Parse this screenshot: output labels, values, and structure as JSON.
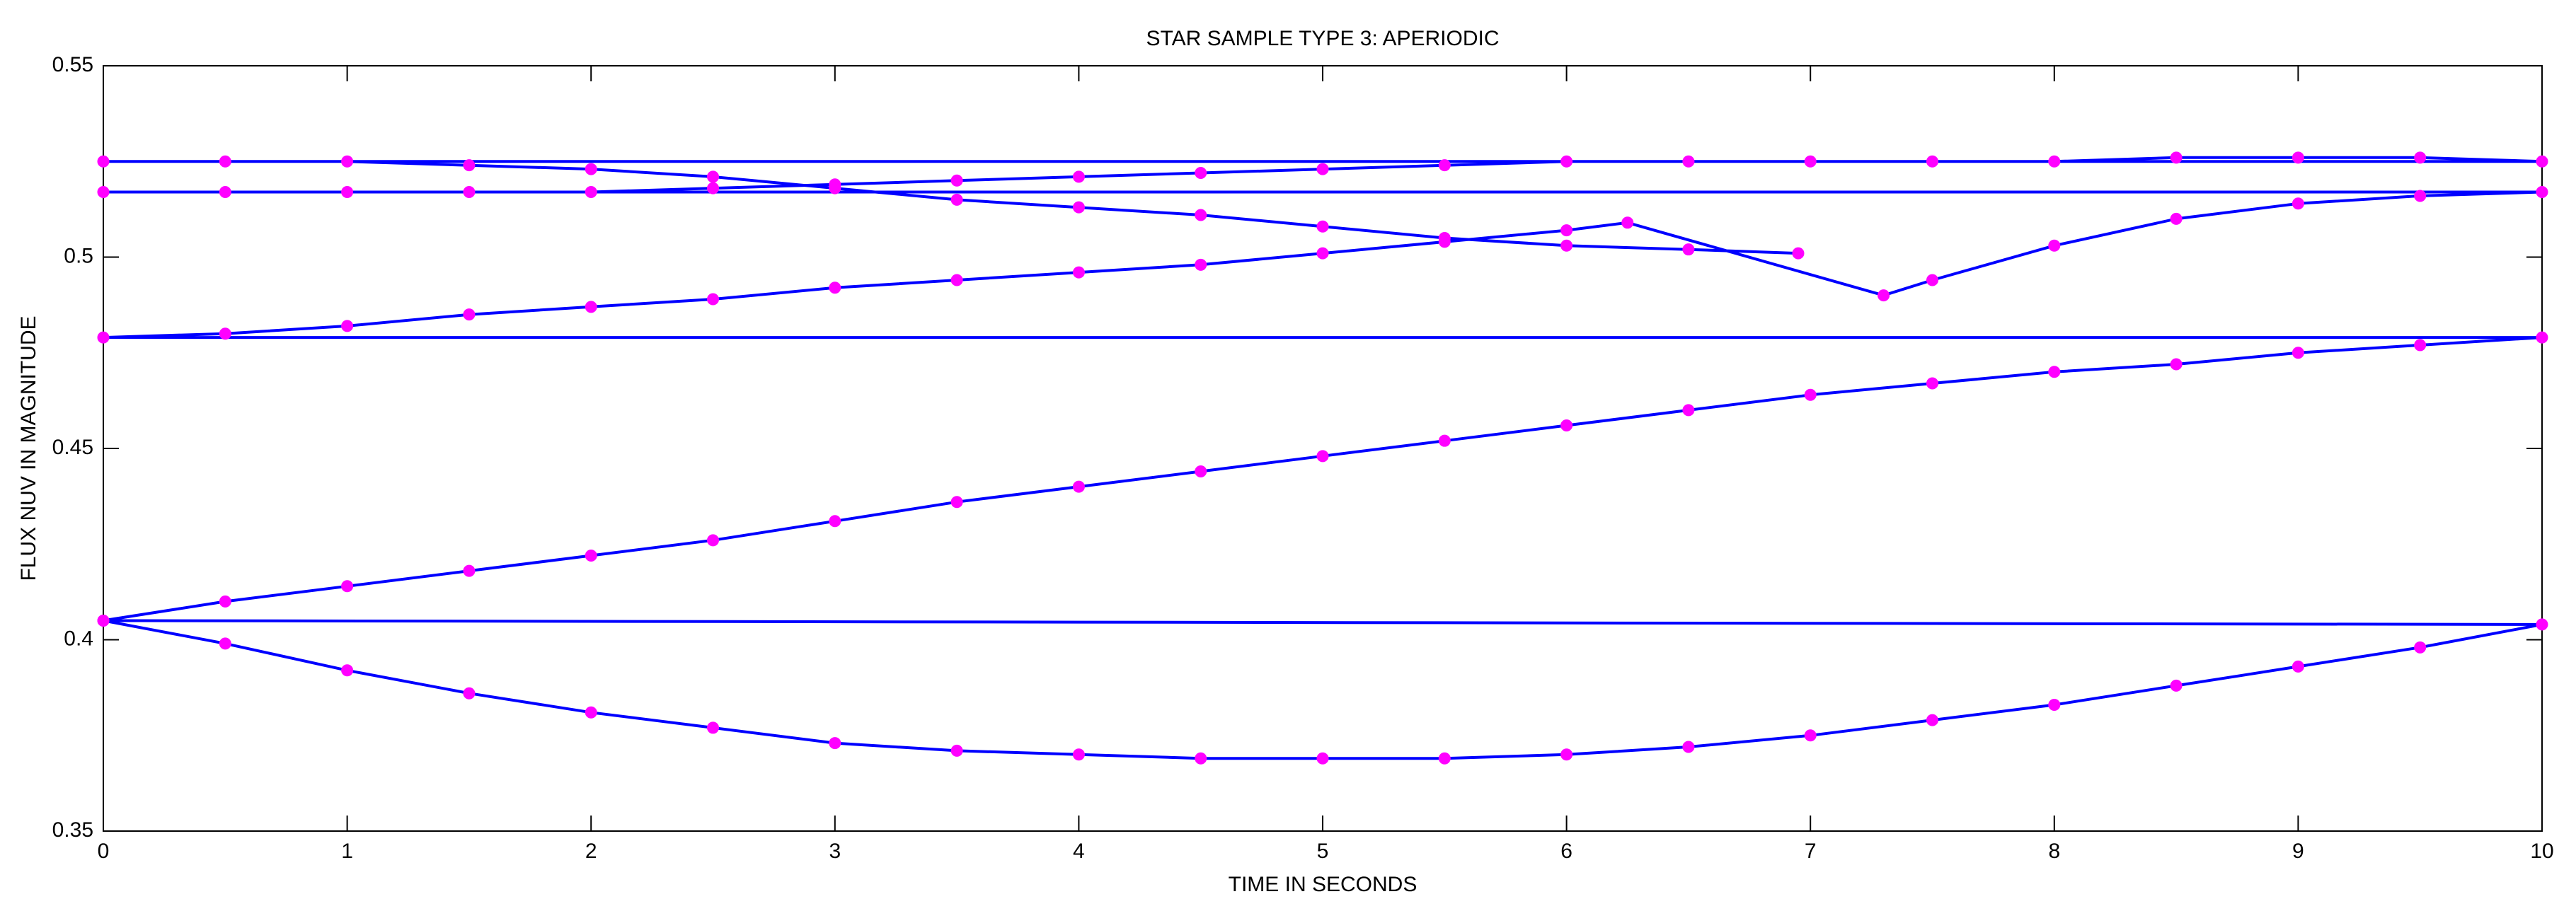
{
  "chart_data": {
    "type": "line",
    "title": "STAR SAMPLE TYPE 3: APERIODIC",
    "xlabel": "TIME IN SECONDS",
    "ylabel": "FLUX NUV IN MAGNITUDE",
    "xlim": [
      0,
      10
    ],
    "ylim": [
      0.35,
      0.55
    ],
    "xticks": [
      0,
      1,
      2,
      3,
      4,
      5,
      6,
      7,
      8,
      9,
      10
    ],
    "yticks": [
      0.35,
      0.4,
      0.45,
      0.5,
      0.55
    ],
    "grid": false,
    "color": "#0000ff",
    "marker_color": "#ff00ff",
    "x": [
      0,
      0.5,
      1,
      1.5,
      2,
      2.5,
      3,
      3.5,
      4,
      4.5,
      5,
      5.5,
      6,
      6.5,
      7,
      7.5,
      8,
      8.5,
      9,
      9.5,
      10,
      0,
      0.5,
      1,
      1.5,
      2,
      2.5,
      3,
      3.5,
      4,
      4.5,
      5,
      5.5,
      6,
      6.5,
      7,
      7.5,
      8,
      8.5,
      9,
      9.5,
      10,
      0,
      0.5,
      1,
      1.5,
      2,
      2.5,
      3,
      3.5,
      4,
      4.5,
      5,
      5.5,
      6,
      6.25,
      7.3,
      7.5,
      8,
      8.5,
      9,
      9.5,
      10,
      0,
      0.5,
      1,
      1.5,
      2,
      2.5,
      3,
      3.5,
      4,
      4.5,
      5,
      5.5,
      6,
      6.5,
      7,
      7.5,
      8,
      8.5,
      9,
      9.5,
      10,
      0,
      0.5,
      1,
      1.5,
      2,
      2.5,
      3,
      3.5,
      4,
      4.5,
      5,
      5.5,
      6,
      6.5,
      6.95
    ],
    "values": [
      0.405,
      0.399,
      0.392,
      0.386,
      0.381,
      0.377,
      0.373,
      0.371,
      0.37,
      0.369,
      0.369,
      0.369,
      0.37,
      0.372,
      0.375,
      0.379,
      0.383,
      0.388,
      0.393,
      0.398,
      0.404,
      0.405,
      0.41,
      0.414,
      0.418,
      0.422,
      0.426,
      0.431,
      0.436,
      0.44,
      0.444,
      0.448,
      0.452,
      0.456,
      0.46,
      0.464,
      0.467,
      0.47,
      0.472,
      0.475,
      0.477,
      0.479,
      0.479,
      0.48,
      0.482,
      0.485,
      0.487,
      0.489,
      0.492,
      0.494,
      0.496,
      0.498,
      0.501,
      0.504,
      0.507,
      0.509,
      0.49,
      0.494,
      0.503,
      0.51,
      0.514,
      0.516,
      0.517,
      0.517,
      0.517,
      0.517,
      0.517,
      0.517,
      0.518,
      0.519,
      0.52,
      0.521,
      0.522,
      0.523,
      0.524,
      0.525,
      0.525,
      0.525,
      0.525,
      0.525,
      0.526,
      0.526,
      0.526,
      0.525,
      0.525,
      0.525,
      0.525,
      0.524,
      0.523,
      0.521,
      0.518,
      0.515,
      0.513,
      0.511,
      0.508,
      0.505,
      0.503,
      0.502,
      0.501
    ]
  }
}
